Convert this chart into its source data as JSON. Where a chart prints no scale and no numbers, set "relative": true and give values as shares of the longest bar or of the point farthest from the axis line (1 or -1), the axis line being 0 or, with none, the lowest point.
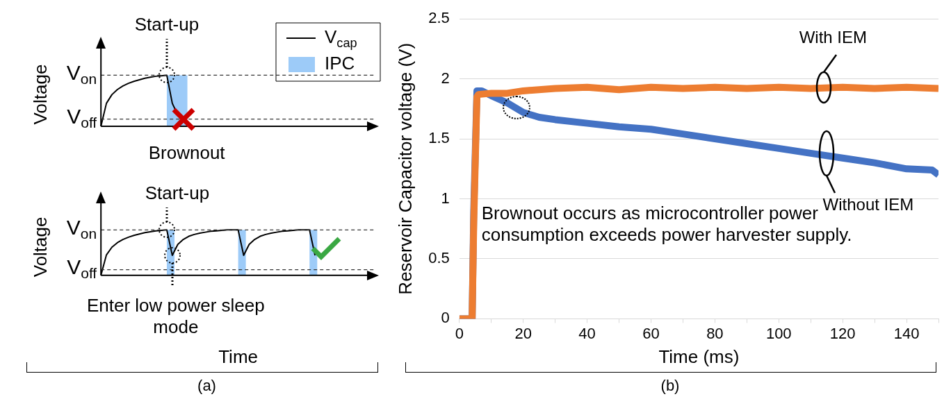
{
  "chart_data": [
    {
      "type": "line",
      "relative": true,
      "ylabel": "Voltage",
      "tick_labels": false,
      "grid": false,
      "legend": "top right",
      "line_style": "solid",
      "categories": [
        null,
        null,
        null,
        null,
        null,
        null,
        null,
        null,
        null,
        null,
        null,
        null,
        null,
        null,
        null,
        null,
        null,
        null,
        null,
        null,
        null,
        null,
        null,
        null,
        null,
        null,
        null,
        null,
        null,
        null,
        null,
        null,
        null,
        null,
        null,
        null,
        null,
        null,
        null,
        null,
        null,
        null,
        null,
        null,
        null,
        null,
        null,
        null,
        null,
        null,
        null
      ],
      "series": [
        {
          "name": "V$_{cap}$",
          "color": "#000000",
          "values": [
            0,
            0.45,
            0.62,
            0.72,
            0.79,
            0.84,
            0.88,
            0.91,
            0.94,
            0.96,
            0.98,
            0.99,
            1,
            0.45,
            0.22,
            0.14,
            null,
            null,
            null,
            null,
            null,
            null,
            null,
            null,
            null,
            null,
            null,
            null,
            null,
            null,
            null,
            null,
            null,
            null,
            null,
            null,
            null,
            null,
            null,
            null,
            null,
            null,
            null,
            null,
            null,
            null,
            null,
            null,
            null,
            null,
            null
          ]
        }
      ],
      "ref_lines": [
        {
          "axis": "y",
          "value": 1,
          "label": "V$_{on}$",
          "line_style": "dashed",
          "color": "#333333"
        },
        {
          "axis": "y",
          "value": 0.14,
          "label": "V$_{off}$",
          "line_style": "dashed",
          "color": "#333333"
        }
      ],
      "annotations": [
        "Start-up",
        "Brownout",
        "IPC"
      ]
    },
    {
      "type": "line",
      "relative": true,
      "ylabel": "Voltage",
      "xlabel": "Time",
      "tick_labels": false,
      "grid": false,
      "line_style": "solid",
      "categories": [
        null,
        null,
        null,
        null,
        null,
        null,
        null,
        null,
        null,
        null,
        null,
        null,
        null,
        null,
        null,
        null,
        null,
        null,
        null,
        null,
        null,
        null,
        null,
        null,
        null,
        null,
        null,
        null,
        null,
        null,
        null,
        null,
        null,
        null,
        null,
        null,
        null,
        null,
        null,
        null,
        null,
        null,
        null,
        null,
        null,
        null,
        null,
        null,
        null,
        null,
        null
      ],
      "series": [
        {
          "color": "#000000",
          "values": [
            0,
            0.45,
            0.62,
            0.72,
            0.79,
            0.84,
            0.88,
            0.91,
            0.94,
            0.96,
            0.98,
            0.99,
            1,
            0.44,
            0.68,
            0.79,
            0.86,
            0.9,
            0.93,
            0.95,
            0.97,
            0.98,
            0.99,
            1,
            1,
            1,
            0.44,
            0.68,
            0.79,
            0.86,
            0.9,
            0.93,
            0.95,
            0.97,
            0.98,
            0.99,
            1,
            1,
            1,
            0.44,
            null,
            null,
            null,
            null,
            null,
            null,
            null,
            null,
            null,
            null,
            null
          ]
        }
      ],
      "ref_lines": [
        {
          "axis": "y",
          "value": 1,
          "label": "V$_{on}$",
          "line_style": "dashed",
          "color": "#333333"
        },
        {
          "axis": "y",
          "value": 0.125,
          "label": "V$_{off}$",
          "line_style": "dashed",
          "color": "#333333"
        }
      ],
      "annotations": [
        "Start-up",
        "Enter low power sleep mode",
        "(a)"
      ]
    },
    {
      "type": "line",
      "xlabel": "Time (ms)",
      "ylabel": "Reservoir Capacitor voltage (V)",
      "xlim": [
        0,
        150
      ],
      "ylim": [
        0,
        2.5
      ],
      "grid": "y",
      "line_style": "solid",
      "xticks": [
        0,
        {
          "value": 10,
          "label": null
        },
        20,
        {
          "value": 30,
          "label": null
        },
        40,
        {
          "value": 50,
          "label": null
        },
        60,
        {
          "value": 70,
          "label": null
        },
        80,
        {
          "value": 90,
          "label": null
        },
        100,
        {
          "value": 110,
          "label": null
        },
        120,
        {
          "value": 130,
          "label": null
        },
        140,
        {
          "value": 150,
          "label": null
        }
      ],
      "yticks": [
        0,
        0.5,
        1,
        1.5,
        2,
        2.5
      ],
      "series": [
        {
          "name": "With IEM",
          "color": "#ed7d31",
          "x": [
            0,
            4,
            4.5,
            5.5,
            6,
            10,
            15,
            20,
            30,
            40,
            50,
            60,
            70,
            80,
            90,
            100,
            110,
            120,
            130,
            140,
            150
          ],
          "values": [
            0,
            0,
            0.8,
            1.85,
            1.87,
            1.88,
            1.88,
            1.9,
            1.92,
            1.93,
            1.91,
            1.93,
            1.92,
            1.93,
            1.92,
            1.93,
            1.92,
            1.93,
            1.92,
            1.93,
            1.92
          ]
        },
        {
          "name": "Without IEM",
          "color": "#4472c4",
          "x": [
            0,
            4,
            4.5,
            5.5,
            7,
            10,
            15,
            20,
            25,
            30,
            40,
            50,
            60,
            70,
            80,
            90,
            100,
            110,
            120,
            130,
            140,
            148,
            150
          ],
          "values": [
            0,
            0,
            0.9,
            1.9,
            1.9,
            1.86,
            1.8,
            1.72,
            1.68,
            1.66,
            1.63,
            1.6,
            1.58,
            1.54,
            1.5,
            1.46,
            1.42,
            1.38,
            1.34,
            1.3,
            1.25,
            1.24,
            1.2
          ]
        }
      ],
      "annotations": [
        "Brownout occurs as microcontroller power consumption exceeds power harvester supply.",
        "(b)"
      ]
    }
  ]
}
